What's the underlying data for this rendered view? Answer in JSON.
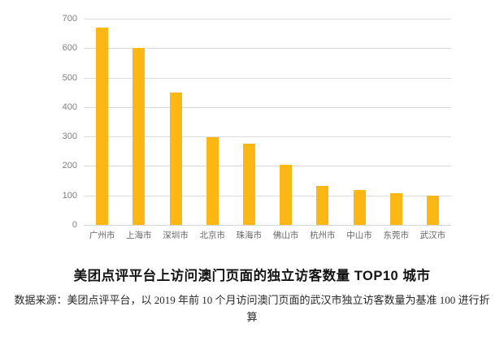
{
  "chart_data": {
    "type": "bar",
    "categories": [
      "广州市",
      "上海市",
      "深圳市",
      "北京市",
      "珠海市",
      "佛山市",
      "杭州市",
      "中山市",
      "东莞市",
      "武汉市"
    ],
    "values": [
      670,
      600,
      450,
      297,
      277,
      204,
      132,
      118,
      108,
      100
    ],
    "title": "美团点评平台上访问澳门页面的独立访客数量 TOP10 城市",
    "source": "数据来源：美团点评平台，以 2019 年前 10 个月访问澳门页面的武汉市独立访客数量为基准 100 进行折算",
    "xlabel": "",
    "ylabel": "",
    "ylim": [
      0,
      700
    ],
    "yticks": [
      0,
      100,
      200,
      300,
      400,
      500,
      600,
      700
    ],
    "grid": true,
    "legend_position": "none",
    "bar_color": "#FDB714",
    "gridline_color": "#dcdcdc",
    "tick_label_color": "#7f7f7f"
  }
}
